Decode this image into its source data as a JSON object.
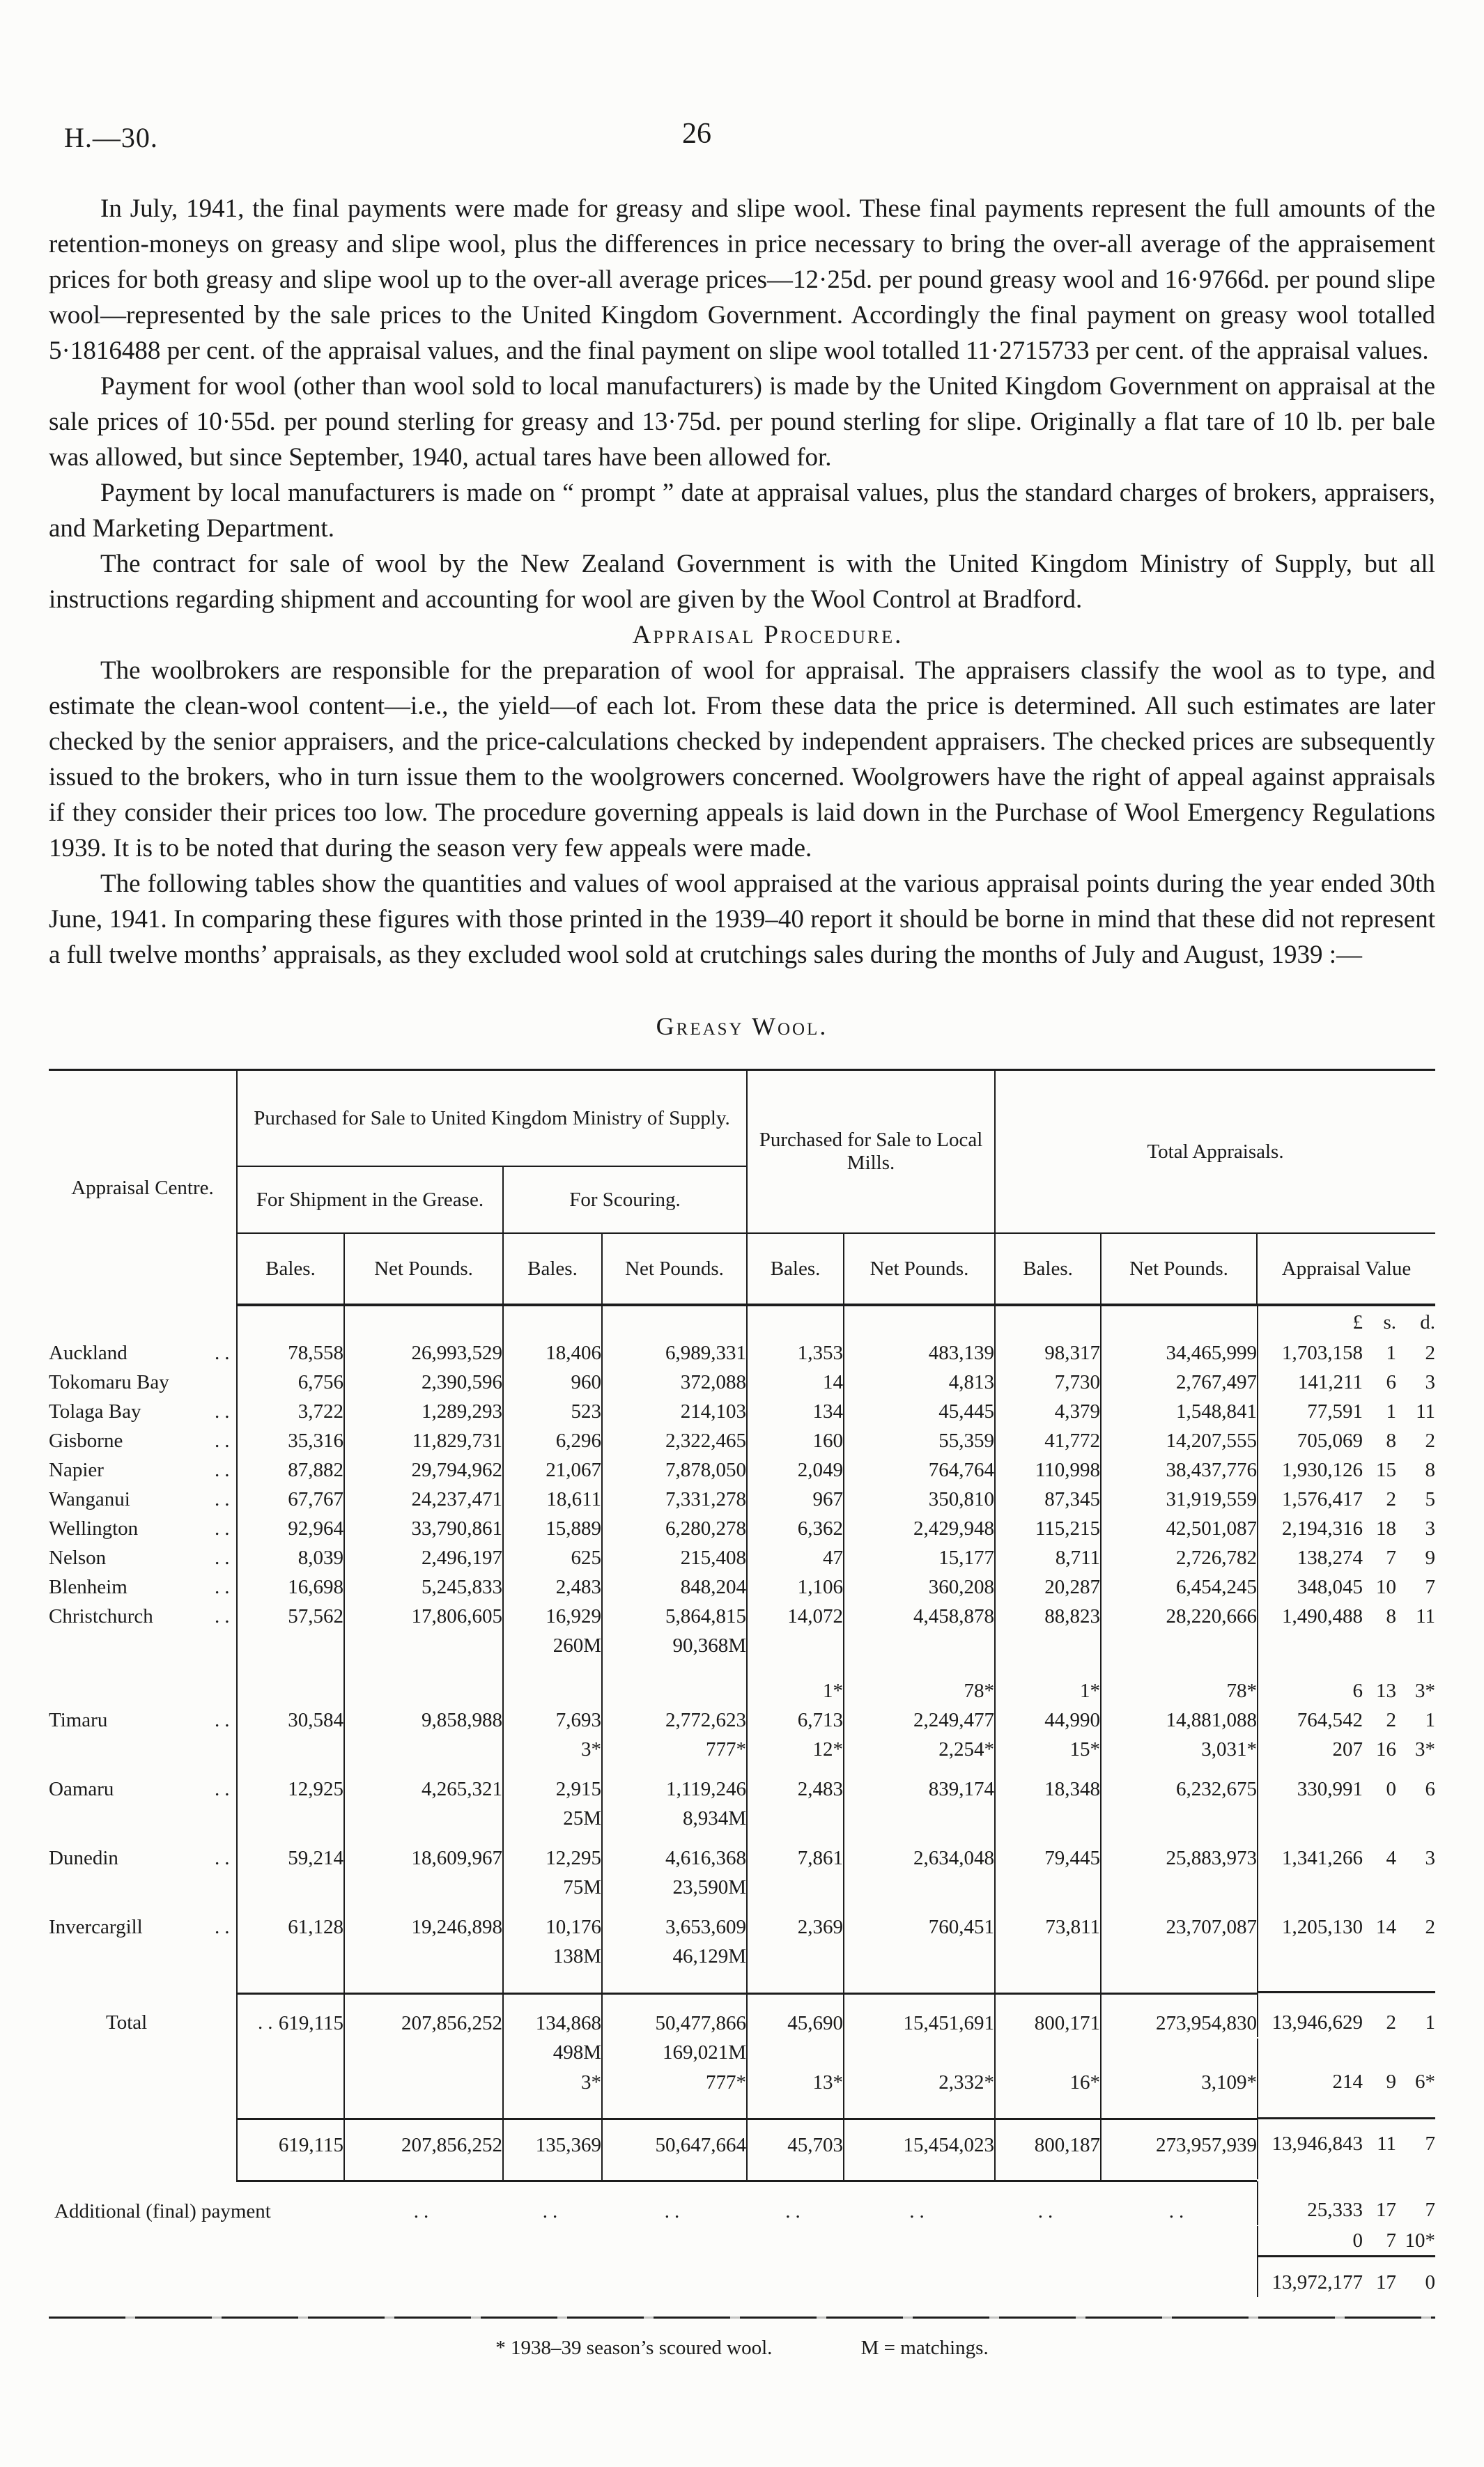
{
  "page": {
    "doc_ref": "H.—30.",
    "page_number": "26"
  },
  "paragraphs": {
    "p1": "In July, 1941, the final payments were made for greasy and slipe wool.  These final payments represent the full amounts of the retention-moneys on greasy and slipe wool, plus the differences in price necessary to bring the over-all average of the appraisement prices for both greasy and slipe wool up to the over-all average prices—12·25d. per pound greasy wool and 16·9766d. per pound slipe wool—represented by the sale prices to the United Kingdom Government.  Accordingly the final payment on greasy wool totalled 5·1816488 per cent. of the appraisal values, and the final payment on slipe wool totalled 11·2715733 per cent. of the appraisal values.",
    "p2": "Payment for wool (other than wool sold to local manufacturers) is made by the United Kingdom Government on appraisal at the sale prices of 10·55d. per pound sterling for greasy and 13·75d. per pound sterling for slipe.  Originally a flat tare of 10 lb. per bale was allowed, but since September, 1940, actual tares have been allowed for.",
    "p3": "Payment by local manufacturers is made on “ prompt ” date at appraisal values, plus the standard charges of brokers, appraisers, and Marketing Department.",
    "p4": "The contract for sale of wool by the New Zealand Government is with the United Kingdom Ministry of Supply, but all instructions regarding shipment and accounting for wool are given by the Wool Control at Bradford.",
    "p5": "The woolbrokers are responsible for the preparation of wool for appraisal.  The appraisers classify the wool as to type, and estimate the clean-wool content—i.e., the yield—of each lot.  From these data the price is determined.  All such estimates are later checked by the senior appraisers, and the price-calculations checked by independent appraisers.  The checked prices are subsequently issued to the brokers, who in turn issue them to the woolgrowers concerned.  Woolgrowers have the right of appeal against appraisals if they consider their prices too low.  The procedure governing appeals is laid down in the Purchase of Wool Emergency Regulations 1939.  It is to be noted that during the season very few appeals were made.",
    "p6": "The following tables show the quantities and values of wool appraised at the various appraisal points during the year ended 30th June, 1941.  In comparing these figures with those printed in the 1939–40 report it should be borne in mind that these did not represent a full twelve months’ appraisals, as they excluded wool sold at crutchings sales during the months of July and August, 1939 :—"
  },
  "section_heading": "Appraisal Procedure.",
  "table_title": "Greasy Wool.",
  "table": {
    "leader": "..",
    "headers": {
      "appraisal_centre": "Appraisal Centre.",
      "uk_ministry": "Purchased for Sale to United Kingdom Ministry of Supply.",
      "local_mills": "Purchased for Sale to Local Mills.",
      "total_appraisals": "Total Appraisals.",
      "grease": "For Shipment in the Grease.",
      "scouring": "For Scouring.",
      "bales": "Bales.",
      "net_pounds": "Net Pounds.",
      "appraisal_value": "Appraisal Value",
      "lsd": "£ s. d."
    },
    "rows": [
      {
        "t": "lsd",
        "cls": "lsdrow",
        "v": "£ s. d."
      },
      {
        "t": "main",
        "label": "Auckland",
        "c": [
          "78,558",
          "26,993,529",
          "18,406",
          "6,989,331",
          "1,353",
          "483,139",
          "98,317",
          "34,465,999"
        ],
        "v": "1,703,158 1 2"
      },
      {
        "t": "main",
        "label": "Tokomaru Bay",
        "dots": false,
        "c": [
          "6,756",
          "2,390,596",
          "960",
          "372,088",
          "14",
          "4,813",
          "7,730",
          "2,767,497"
        ],
        "v": "141,211 6 3"
      },
      {
        "t": "main",
        "label": "Tolaga Bay",
        "c": [
          "3,722",
          "1,289,293",
          "523",
          "214,103",
          "134",
          "45,445",
          "4,379",
          "1,548,841"
        ],
        "v": "77,591 1 11"
      },
      {
        "t": "main",
        "label": "Gisborne",
        "c": [
          "35,316",
          "11,829,731",
          "6,296",
          "2,322,465",
          "160",
          "55,359",
          "41,772",
          "14,207,555"
        ],
        "v": "705,069 8 2"
      },
      {
        "t": "main",
        "label": "Napier",
        "c": [
          "87,882",
          "29,794,962",
          "21,067",
          "7,878,050",
          "2,049",
          "764,764",
          "110,998",
          "38,437,776"
        ],
        "v": "1,930,126 15 8"
      },
      {
        "t": "main",
        "label": "Wanganui",
        "c": [
          "67,767",
          "24,237,471",
          "18,611",
          "7,331,278",
          "967",
          "350,810",
          "87,345",
          "31,919,559"
        ],
        "v": "1,576,417 2 5"
      },
      {
        "t": "main",
        "label": "Wellington",
        "c": [
          "92,964",
          "33,790,861",
          "15,889",
          "6,280,278",
          "6,362",
          "2,429,948",
          "115,215",
          "42,501,087"
        ],
        "v": "2,194,316 18 3"
      },
      {
        "t": "main",
        "label": "Nelson",
        "c": [
          "8,039",
          "2,496,197",
          "625",
          "215,408",
          "47",
          "15,177",
          "8,711",
          "2,726,782"
        ],
        "v": "138,274 7 9"
      },
      {
        "t": "main",
        "label": "Blenheim",
        "c": [
          "16,698",
          "5,245,833",
          "2,483",
          "848,204",
          "1,106",
          "360,208",
          "20,287",
          "6,454,245"
        ],
        "v": "348,045 10 7"
      },
      {
        "t": "main",
        "label": "Christchurch",
        "c": [
          "57,562",
          "17,806,605",
          "16,929",
          "5,864,815",
          "14,072",
          "4,458,878",
          "88,823",
          "28,220,666"
        ],
        "v": "1,490,488 8 11"
      },
      {
        "t": "sub",
        "c": [
          "",
          "",
          "260M",
          "90,368M",
          "",
          "",
          "",
          ""
        ],
        "v": ""
      },
      {
        "t": "sub",
        "cls": "gap",
        "c": [
          "",
          "",
          "",
          "",
          "1*",
          "78*",
          "1*",
          "78*"
        ],
        "v": "6 13 3*"
      },
      {
        "t": "main",
        "label": "Timaru",
        "c": [
          "30,584",
          "9,858,988",
          "7,693",
          "2,772,623",
          "6,713",
          "2,249,477",
          "44,990",
          "14,881,088"
        ],
        "v": "764,542 2 1"
      },
      {
        "t": "sub",
        "c": [
          "",
          "",
          "3*",
          "777*",
          "12*",
          "2,254*",
          "15*",
          "3,031*"
        ],
        "v": "207 16 3*"
      },
      {
        "t": "main",
        "cls": "padt",
        "label": "Oamaru",
        "c": [
          "12,925",
          "4,265,321",
          "2,915",
          "1,119,246",
          "2,483",
          "839,174",
          "18,348",
          "6,232,675"
        ],
        "v": "330,991 0 6"
      },
      {
        "t": "sub",
        "c": [
          "",
          "",
          "25M",
          "8,934M",
          "",
          "",
          "",
          ""
        ],
        "v": ""
      },
      {
        "t": "main",
        "cls": "padt",
        "label": "Dunedin",
        "c": [
          "59,214",
          "18,609,967",
          "12,295",
          "4,616,368",
          "7,861",
          "2,634,048",
          "79,445",
          "25,883,973"
        ],
        "v": "1,341,266 4 3"
      },
      {
        "t": "sub",
        "c": [
          "",
          "",
          "75M",
          "23,590M",
          "",
          "",
          "",
          ""
        ],
        "v": ""
      },
      {
        "t": "main",
        "cls": "padt",
        "label": "Invercargill",
        "c": [
          "61,128",
          "19,246,898",
          "10,176",
          "3,653,609",
          "2,369",
          "760,451",
          "73,811",
          "23,707,087"
        ],
        "v": "1,205,130 14 2"
      },
      {
        "t": "sub",
        "cls": "rb padb",
        "c": [
          "",
          "",
          "138M",
          "46,129M",
          "",
          "",
          "",
          ""
        ],
        "v": ""
      },
      {
        "t": "main",
        "cls": "padt2",
        "label": "Total",
        "indent": true,
        "c": [
          "619,115",
          "207,856,252",
          "134,868",
          "50,477,866",
          "45,690",
          "15,451,691",
          "800,171",
          "273,954,830"
        ],
        "v": "13,946,629 2 1"
      },
      {
        "t": "sub",
        "c": [
          "",
          "",
          "498M",
          "169,021M",
          "",
          "",
          "",
          ""
        ],
        "v": ""
      },
      {
        "t": "sub",
        "cls": "rb padb",
        "c": [
          "",
          "",
          "3*",
          "777*",
          "13*",
          "2,332*",
          "16*",
          "3,109*"
        ],
        "v": "214 9 6*"
      },
      {
        "t": "sub",
        "cls": "padt padb rb9",
        "c": [
          "619,115",
          "207,856,252",
          "135,369",
          "50,647,664",
          "45,703",
          "15,454,023",
          "800,187",
          "273,957,939"
        ],
        "v": "13,946,843 11 7"
      },
      {
        "t": "additional",
        "cls": "tail padt2",
        "label": "Additional (final) payment",
        "dots": false,
        "v": "25,333 17 7"
      },
      {
        "t": "tail",
        "cls": "tail",
        "v": "0 7 10*"
      },
      {
        "t": "tail",
        "cls": "tail vrule padt",
        "v": "13,972,177 17 0"
      }
    ]
  },
  "footnote": {
    "star": "* 1938–39 season’s scoured wool.",
    "matchings": "M = matchings."
  }
}
